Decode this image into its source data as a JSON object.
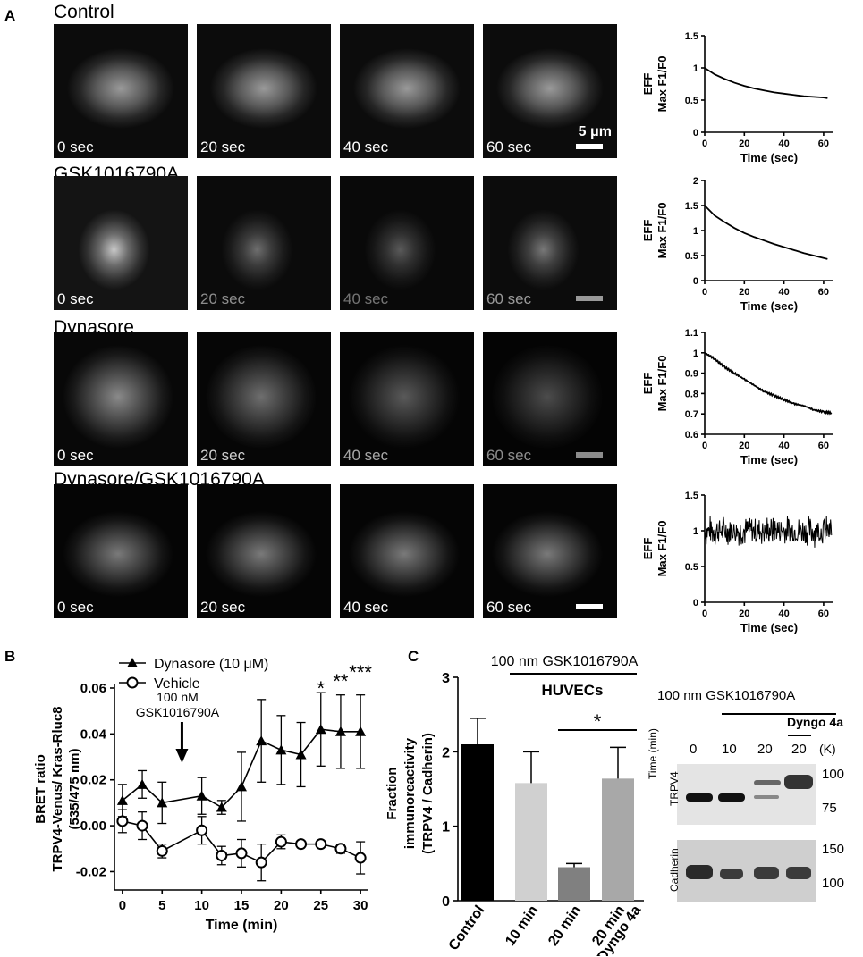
{
  "panel_a": {
    "letter": "A",
    "rows": [
      {
        "title": "Control",
        "times": [
          "0 sec",
          "20 sec",
          "40 sec",
          "60 sec"
        ],
        "scale_label": "5 μm"
      },
      {
        "title": "GSK1016790A",
        "times": [
          "0 sec",
          "20 sec",
          "40 sec",
          "60 sec"
        ]
      },
      {
        "title": "Dynasore",
        "times": [
          "0 sec",
          "20 sec",
          "40 sec",
          "60 sec"
        ]
      },
      {
        "title": "Dynasore/GSK1016790A",
        "times": [
          "0 sec",
          "20 sec",
          "40 sec",
          "60 sec"
        ]
      }
    ]
  },
  "panel_b": {
    "letter": "B"
  },
  "panel_c": {
    "letter": "C",
    "treatment_bracket": "100 nm GSK1016790A",
    "cell_type": "HUVECs",
    "blot": {
      "treatment": "100 nm GSK1016790A",
      "inhibitor": "Dyngo 4a",
      "time_label": "Time (min)",
      "lanes": [
        "0",
        "10",
        "20",
        "20"
      ],
      "kda_unit": "(K)",
      "rows": [
        {
          "name": "TRPV4",
          "markers": [
            "100",
            "75"
          ]
        },
        {
          "name": "Cadherin",
          "markers": [
            "150",
            "100"
          ]
        }
      ]
    }
  },
  "chart_data": [
    {
      "type": "line",
      "panel": "A-Control",
      "xlabel": "Time (sec)",
      "ylabel": "EFF Max F1/F0",
      "xlim": [
        0,
        65
      ],
      "ylim": [
        0,
        1.5
      ],
      "xticks": [
        0,
        20,
        40,
        60
      ],
      "yticks": [
        0.0,
        0.5,
        1.0,
        1.5
      ],
      "series": [
        {
          "x": [
            0,
            5,
            10,
            15,
            20,
            25,
            30,
            35,
            40,
            45,
            50,
            55,
            60,
            62
          ],
          "y": [
            1.0,
            0.9,
            0.83,
            0.77,
            0.72,
            0.68,
            0.65,
            0.62,
            0.6,
            0.58,
            0.56,
            0.55,
            0.54,
            0.53
          ]
        }
      ]
    },
    {
      "type": "line",
      "panel": "A-GSK1016790A",
      "xlabel": "Time (sec)",
      "ylabel": "EFF Max F1/F0",
      "xlim": [
        0,
        65
      ],
      "ylim": [
        0,
        2.0
      ],
      "xticks": [
        0,
        20,
        40,
        60
      ],
      "yticks": [
        0.0,
        0.5,
        1.0,
        1.5,
        2.0
      ],
      "series": [
        {
          "x": [
            0,
            5,
            10,
            15,
            20,
            25,
            30,
            35,
            40,
            45,
            50,
            55,
            60,
            62
          ],
          "y": [
            1.5,
            1.3,
            1.17,
            1.05,
            0.95,
            0.87,
            0.8,
            0.73,
            0.67,
            0.61,
            0.55,
            0.5,
            0.45,
            0.43
          ]
        }
      ]
    },
    {
      "type": "line",
      "panel": "A-Dynasore",
      "xlabel": "Time (sec)",
      "ylabel": "EFF Max F1/F0",
      "xlim": [
        0,
        65
      ],
      "ylim": [
        0.6,
        1.1
      ],
      "xticks": [
        0,
        20,
        40,
        60
      ],
      "yticks": [
        0.6,
        0.7,
        0.8,
        0.9,
        1.0,
        1.1
      ],
      "series": [
        {
          "x": [
            0,
            5,
            10,
            15,
            20,
            25,
            30,
            35,
            40,
            45,
            50,
            55,
            60,
            64
          ],
          "y": [
            1.0,
            0.97,
            0.93,
            0.9,
            0.87,
            0.84,
            0.81,
            0.79,
            0.77,
            0.75,
            0.74,
            0.72,
            0.71,
            0.705
          ]
        }
      ]
    },
    {
      "type": "line",
      "panel": "A-Dynasore/GSK1016790A",
      "xlabel": "Time (sec)",
      "ylabel": "EFF Max F1/F0",
      "xlim": [
        0,
        65
      ],
      "ylim": [
        0,
        1.5
      ],
      "xticks": [
        0,
        20,
        40,
        60
      ],
      "yticks": [
        0.0,
        0.5,
        1.0,
        1.5
      ],
      "series": [
        {
          "note_mean": 1.0,
          "note_noise": 0.2,
          "x": [
            0,
            64
          ],
          "y": [
            1.0,
            1.0
          ]
        }
      ]
    },
    {
      "type": "line",
      "panel": "B",
      "xlabel": "Time (min)",
      "ylabel": "BRET ratio TRPV4-Venus/ Kras-Rluc8 (535/475 nm)",
      "xlim": [
        -1,
        31
      ],
      "ylim": [
        -0.028,
        0.06
      ],
      "xticks": [
        0,
        5,
        10,
        15,
        20,
        25,
        30
      ],
      "yticks": [
        -0.02,
        0.0,
        0.02,
        0.04,
        0.06
      ],
      "ytick_labels": [
        "-0.02",
        "0.00",
        "0.02",
        "0.04",
        "0.06"
      ],
      "annotation": {
        "text": [
          "100 nM",
          "GSK1016790A"
        ],
        "x": 7.5
      },
      "significance": [
        {
          "x": 25,
          "text": "*"
        },
        {
          "x": 27.5,
          "text": "**"
        },
        {
          "x": 30,
          "text": "***"
        }
      ],
      "series": [
        {
          "name": "Dynasore (10 μM)",
          "marker": "triangle",
          "x": [
            0,
            2.5,
            5,
            10,
            12.5,
            15,
            17.5,
            20,
            22.5,
            25,
            27.5,
            30
          ],
          "y": [
            0.011,
            0.018,
            0.01,
            0.013,
            0.008,
            0.017,
            0.037,
            0.033,
            0.031,
            0.042,
            0.041,
            0.041
          ],
          "err": [
            0.007,
            0.006,
            0.009,
            0.008,
            0.003,
            0.015,
            0.018,
            0.015,
            0.014,
            0.016,
            0.016,
            0.016
          ]
        },
        {
          "name": "Vehicle",
          "marker": "circle",
          "x": [
            0,
            2.5,
            5,
            10,
            12.5,
            15,
            17.5,
            20,
            22.5,
            25,
            27.5,
            30
          ],
          "y": [
            0.002,
            0.0,
            -0.011,
            -0.002,
            -0.013,
            -0.012,
            -0.016,
            -0.007,
            -0.008,
            -0.008,
            -0.01,
            -0.014
          ],
          "err": [
            0.005,
            0.006,
            0.003,
            0.006,
            0.004,
            0.006,
            0.008,
            0.003,
            0.001,
            0.001,
            0.002,
            0.007
          ]
        }
      ]
    },
    {
      "type": "bar",
      "panel": "C",
      "ylabel": "Fraction immunoreactivity (TRPV4 / Cadherin)",
      "ylim": [
        0,
        3
      ],
      "yticks": [
        0,
        1,
        2,
        3
      ],
      "categories": [
        "Control",
        "10 min",
        "20 min",
        "20 min Dyngo 4a"
      ],
      "values": [
        2.1,
        1.58,
        0.45,
        1.64
      ],
      "err": [
        0.35,
        0.42,
        0.05,
        0.42
      ],
      "colors": [
        "#000000",
        "#d0d0d0",
        "#808080",
        "#a8a8a8"
      ],
      "significance": {
        "between": [
          "20 min",
          "20 min Dyngo 4a"
        ],
        "text": "*"
      }
    }
  ]
}
